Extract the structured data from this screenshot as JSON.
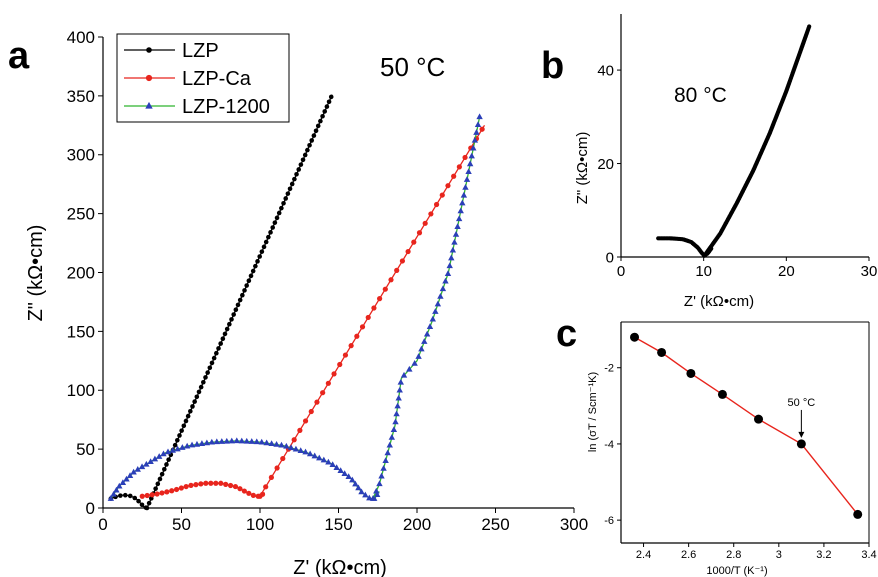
{
  "panels": {
    "a": {
      "letter": "a",
      "annotation": "50 °C"
    },
    "b": {
      "letter": "b",
      "annotation": "80 °C"
    },
    "c": {
      "letter": "c",
      "annotation": "50 °C"
    }
  },
  "colors": {
    "LZP": "#000000",
    "LZP-Ca": "#e8251d",
    "LZP-1200-line": "#2fb52f",
    "LZP-1200-marker": "#2b3fb8",
    "panel_c_line": "#e8251d",
    "panel_c_marker": "#000000"
  },
  "chart_data": [
    {
      "id": "a",
      "type": "scatter",
      "title": "",
      "xlabel": "Z' (kΩ•cm)",
      "ylabel": "Z\" (kΩ•cm)",
      "xlim": [
        0,
        300
      ],
      "ylim": [
        0,
        400
      ],
      "xticks": [
        0,
        50,
        100,
        150,
        200,
        250,
        300
      ],
      "yticks": [
        0,
        50,
        100,
        150,
        200,
        250,
        300,
        350,
        400
      ],
      "grid": false,
      "legend": "top-left",
      "series": [
        {
          "name": "LZP",
          "marker": "circle",
          "arc": [
            [
              5,
              8
            ],
            [
              9,
              10
            ],
            [
              13,
              11
            ],
            [
              17,
              10.5
            ],
            [
              21,
              8
            ],
            [
              24,
              4
            ],
            [
              26,
              1
            ],
            [
              28,
              0
            ]
          ],
          "line": [
            [
              28,
              0
            ],
            [
              146,
              351
            ]
          ]
        },
        {
          "name": "LZP-Ca",
          "marker": "circle",
          "arc": [
            [
              25,
              10
            ],
            [
              35,
              12
            ],
            [
              45,
              15
            ],
            [
              55,
              19
            ],
            [
              65,
              21
            ],
            [
              75,
              21
            ],
            [
              85,
              18
            ],
            [
              92,
              13
            ],
            [
              97,
              10
            ],
            [
              100,
              10
            ],
            [
              103,
              13
            ]
          ],
          "line": [
            [
              100,
              10
            ],
            [
              243,
              325
            ]
          ]
        },
        {
          "name": "LZP-1200",
          "marker": "triangle",
          "arc": [
            [
              5,
              8
            ],
            [
              10,
              18
            ],
            [
              20,
              31
            ],
            [
              30,
              39
            ],
            [
              40,
              47
            ],
            [
              55,
              53
            ],
            [
              70,
              56
            ],
            [
              85,
              57
            ],
            [
              100,
              56
            ],
            [
              115,
              53
            ],
            [
              130,
              47
            ],
            [
              145,
              38
            ],
            [
              158,
              25
            ],
            [
              165,
              13
            ],
            [
              170,
              8
            ],
            [
              173,
              8
            ],
            [
              176,
              14
            ]
          ],
          "line": [
            [
              172,
              8
            ],
            [
              176,
              20
            ],
            [
              180,
              40
            ],
            [
              186,
              70
            ],
            [
              190,
              110
            ],
            [
              200,
              125
            ],
            [
              210,
              160
            ],
            [
              220,
              200
            ],
            [
              240,
              333
            ]
          ]
        }
      ]
    },
    {
      "id": "b",
      "type": "scatter",
      "title": "",
      "xlabel": "Z' (kΩ•cm)",
      "ylabel": "Z\" (kΩ•cm)",
      "xlim": [
        0,
        30
      ],
      "ylim": [
        0,
        52
      ],
      "xticks": [
        0,
        10,
        20,
        30
      ],
      "yticks": [
        0,
        20,
        40
      ],
      "grid": false,
      "series": [
        {
          "name": "",
          "marker": "circle",
          "arc": [
            [
              4.5,
              4
            ],
            [
              6,
              4
            ],
            [
              7.5,
              3.8
            ],
            [
              8.5,
              3.2
            ],
            [
              9.3,
              2
            ],
            [
              9.8,
              0.8
            ],
            [
              10.1,
              0.3
            ],
            [
              10.5,
              0.8
            ],
            [
              11,
              2
            ]
          ],
          "line": [
            [
              10.1,
              0.3
            ],
            [
              12,
              5
            ],
            [
              14,
              11.5
            ],
            [
              16,
              18.5
            ],
            [
              18,
              26.5
            ],
            [
              20,
              35.5
            ],
            [
              22.8,
              49.5
            ]
          ]
        }
      ]
    },
    {
      "id": "c",
      "type": "line",
      "title": "",
      "xlabel": "1000/T (K⁻¹)",
      "ylabel": "ln (σT / Scm⁻¹K)",
      "xlim": [
        2.3,
        3.4
      ],
      "ylim": [
        -6.6,
        -0.8
      ],
      "xticks": [
        2.4,
        2.6,
        2.8,
        3.0,
        3.2,
        3.4
      ],
      "yticks": [
        -6,
        -4,
        -2
      ],
      "grid": false,
      "x": [
        2.36,
        2.48,
        2.61,
        2.75,
        2.91,
        3.1,
        3.35
      ],
      "y": [
        -1.2,
        -1.6,
        -2.15,
        -2.7,
        -3.35,
        -4.0,
        -5.85
      ],
      "annotation": {
        "text": "50 °C",
        "x": 3.1,
        "y": -4.0
      }
    }
  ]
}
